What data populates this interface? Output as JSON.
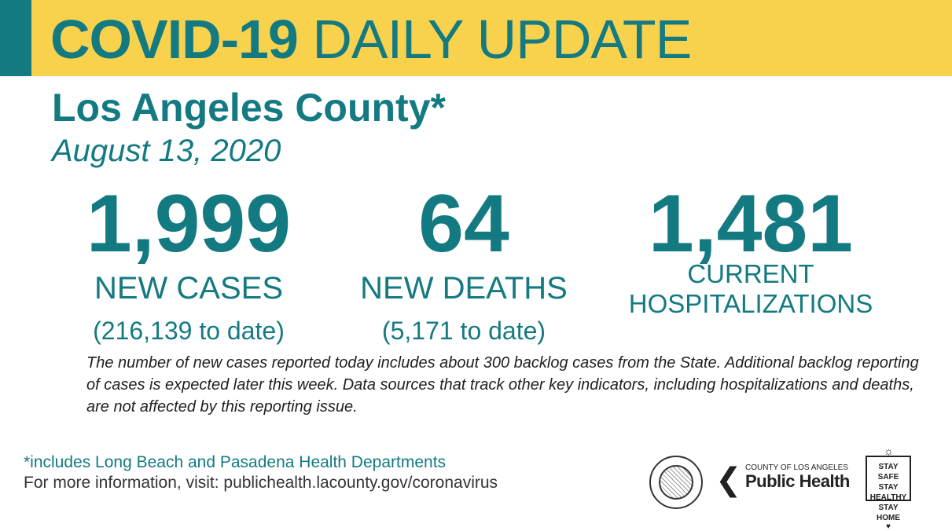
{
  "header": {
    "title_bold": "COVID-19",
    "title_rest": "DAILY UPDATE"
  },
  "region": "Los Angeles County*",
  "date": "August 13, 2020",
  "stats": [
    {
      "number": "1,999",
      "label": "NEW CASES",
      "sub": "(216,139 to date)"
    },
    {
      "number": "64",
      "label": "NEW DEATHS",
      "sub": "(5,171 to date)"
    },
    {
      "number": "1,481",
      "label_line1": "CURRENT",
      "label_line2": "HOSPITALIZATIONS"
    }
  ],
  "note": "The number of new cases reported today includes about 300 backlog cases from the State. Additional backlog reporting of cases is expected later this week. Data sources that track other key indicators, including hospitalizations and deaths, are not affected by this reporting issue.",
  "footer": {
    "footnote": "*includes Long Beach and Pasadena Health Departments",
    "more_info": "For more information, visit: publichealth.lacounty.gov/coronavirus"
  },
  "logos": {
    "seal": "county-seal-icon",
    "public_health_small": "COUNTY OF LOS ANGELES",
    "public_health_big": "Public Health",
    "stay_safe_lines": [
      "STAY SAFE",
      "STAY HEALTHY",
      "STAY HOME"
    ]
  },
  "colors": {
    "teal": "#147a82",
    "yellow": "#f9d24d"
  }
}
